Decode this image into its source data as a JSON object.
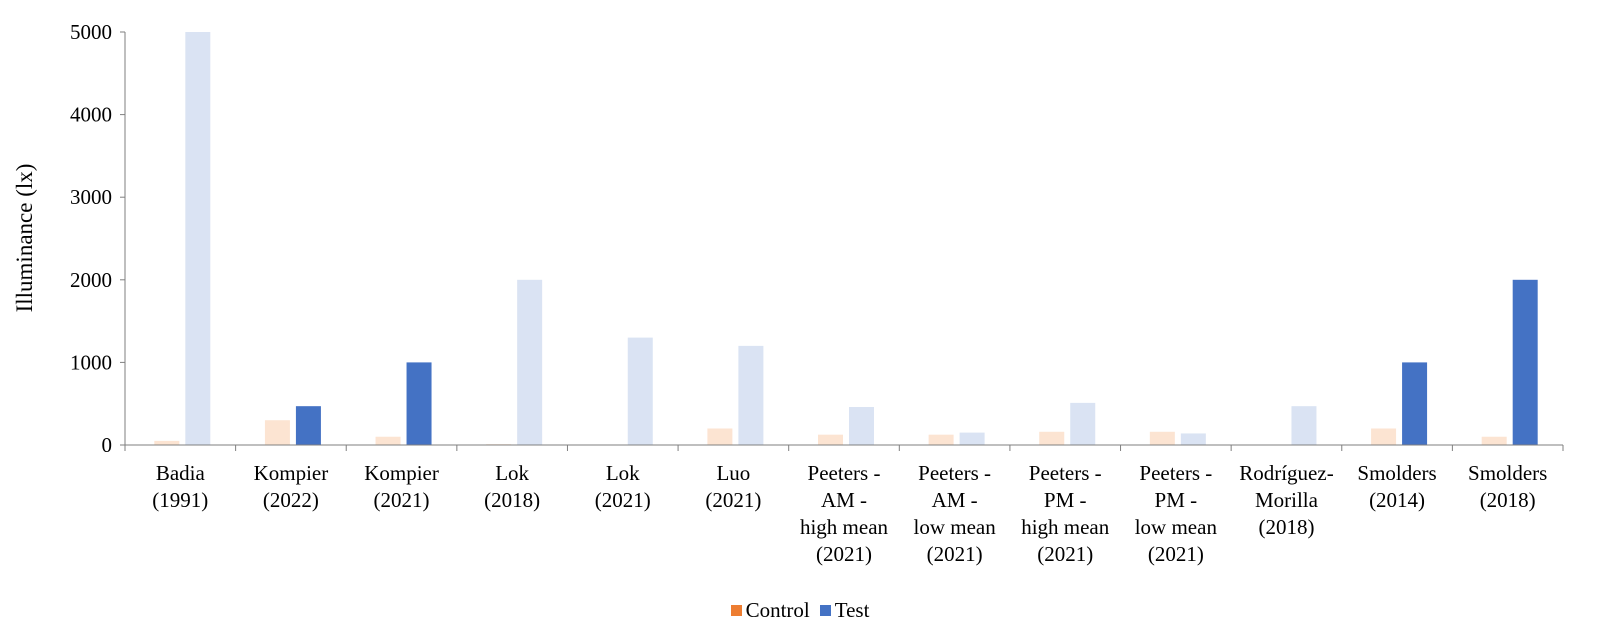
{
  "chart_data": {
    "type": "bar",
    "ylabel": "Illuminance (lx)",
    "ylim": [
      0,
      5000
    ],
    "yticks": [
      0,
      1000,
      2000,
      3000,
      4000,
      5000
    ],
    "categories": [
      [
        "Badia",
        "(1991)"
      ],
      [
        "Kompier",
        "(2022)"
      ],
      [
        "Kompier",
        "(2021)"
      ],
      [
        "Lok",
        "(2018)"
      ],
      [
        "Lok",
        "(2021)"
      ],
      [
        "Luo",
        "(2021)"
      ],
      [
        "Peeters -",
        "AM -",
        "high mean",
        "(2021)"
      ],
      [
        "Peeters -",
        "AM -",
        "low mean",
        "(2021)"
      ],
      [
        "Peeters -",
        "PM -",
        "high mean",
        "(2021)"
      ],
      [
        "Peeters -",
        "PM -",
        "low mean",
        "(2021)"
      ],
      [
        "Rodríguez-",
        "Morilla",
        "(2018)"
      ],
      [
        "Smolders",
        "(2014)"
      ],
      [
        "Smolders",
        "(2018)"
      ]
    ],
    "series": [
      {
        "name": "Control",
        "color": "#ED7D31",
        "faded_color": "#FCE4D2",
        "values": [
          50,
          300,
          100,
          10,
          5,
          200,
          125,
          125,
          160,
          160,
          5,
          200,
          100
        ],
        "faded": [
          true,
          true,
          true,
          true,
          true,
          true,
          true,
          true,
          true,
          true,
          true,
          true,
          true
        ]
      },
      {
        "name": "Test",
        "color": "#4472C4",
        "faded_color": "#DAE3F3",
        "values": [
          5000,
          470,
          1000,
          2000,
          1300,
          1200,
          460,
          150,
          510,
          140,
          470,
          1000,
          2000
        ],
        "faded": [
          true,
          false,
          false,
          true,
          true,
          true,
          true,
          true,
          true,
          true,
          true,
          false,
          false
        ]
      }
    ],
    "grid": false,
    "legend_position": "bottom"
  }
}
